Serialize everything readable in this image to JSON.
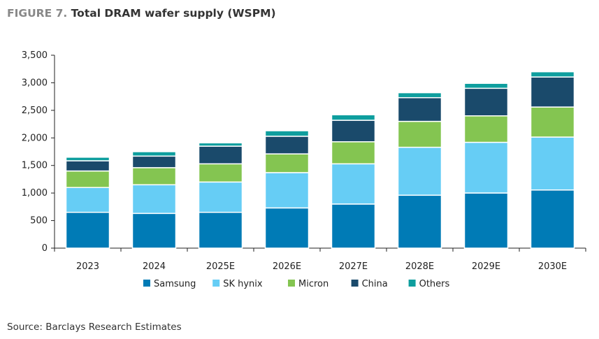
{
  "figure_label": "FIGURE 7.",
  "source": "Source: Barclays Research Estimates",
  "chart_data": {
    "type": "bar",
    "stacked": true,
    "title": "Total DRAM wafer supply (WSPM)",
    "xlabel": "",
    "ylabel": "",
    "ylim": [
      0,
      3500
    ],
    "yticks": [
      0,
      500,
      1000,
      1500,
      2000,
      2500,
      3000,
      3500
    ],
    "ytick_labels": [
      "0",
      "500",
      "1,000",
      "1,500",
      "2,000",
      "2,500",
      "3,000",
      "3,500"
    ],
    "categories": [
      "2023",
      "2024",
      "2025E",
      "2026E",
      "2027E",
      "2028E",
      "2029E",
      "2030E"
    ],
    "legend_position": "bottom",
    "series": [
      {
        "name": "Samsung",
        "color": "#007bb6",
        "values": [
          650,
          630,
          650,
          730,
          800,
          960,
          1000,
          1055
        ]
      },
      {
        "name": "SK hynix",
        "color": "#66cdf5",
        "values": [
          450,
          520,
          550,
          640,
          730,
          870,
          920,
          960
        ]
      },
      {
        "name": "Micron",
        "color": "#84c551",
        "values": [
          300,
          310,
          330,
          340,
          400,
          470,
          480,
          545
        ]
      },
      {
        "name": "China",
        "color": "#1a4a6b",
        "values": [
          185,
          210,
          320,
          320,
          390,
          430,
          500,
          545
        ]
      },
      {
        "name": "Others",
        "color": "#0e9e9e",
        "values": [
          65,
          80,
          60,
          100,
          100,
          90,
          90,
          95
        ]
      }
    ]
  }
}
